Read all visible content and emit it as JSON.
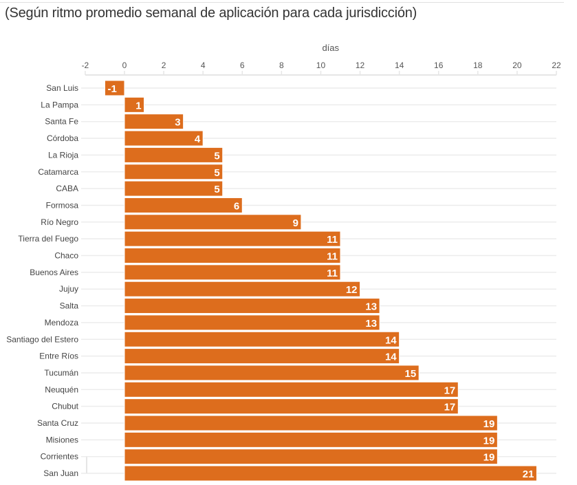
{
  "chart_data": {
    "type": "bar",
    "orientation": "horizontal",
    "subtitle": "(Según ritmo promedio semanal de aplicación para cada jurisdicción)",
    "xlabel": "días",
    "xlim": [
      -2,
      22
    ],
    "xticks": [
      -2,
      0,
      2,
      4,
      6,
      8,
      10,
      12,
      14,
      16,
      18,
      20,
      22
    ],
    "grid": true,
    "bar_color": "#dd6d1d",
    "categories": [
      "San Luis",
      "La Pampa",
      "Santa Fe",
      "Córdoba",
      "La Rioja",
      "Catamarca",
      "CABA",
      "Formosa",
      "Río Negro",
      "Tierra del Fuego",
      "Chaco",
      "Buenos Aires",
      "Jujuy",
      "Salta",
      "Mendoza",
      "Santiago del Estero",
      "Entre Ríos",
      "Tucumán",
      "Neuquén",
      "Chubut",
      "Santa Cruz",
      "Misiones",
      "Corrientes",
      "San Juan"
    ],
    "values": [
      -1,
      1,
      3,
      4,
      5,
      5,
      5,
      6,
      9,
      11,
      11,
      11,
      12,
      13,
      13,
      14,
      14,
      15,
      17,
      17,
      19,
      19,
      19,
      21
    ]
  }
}
